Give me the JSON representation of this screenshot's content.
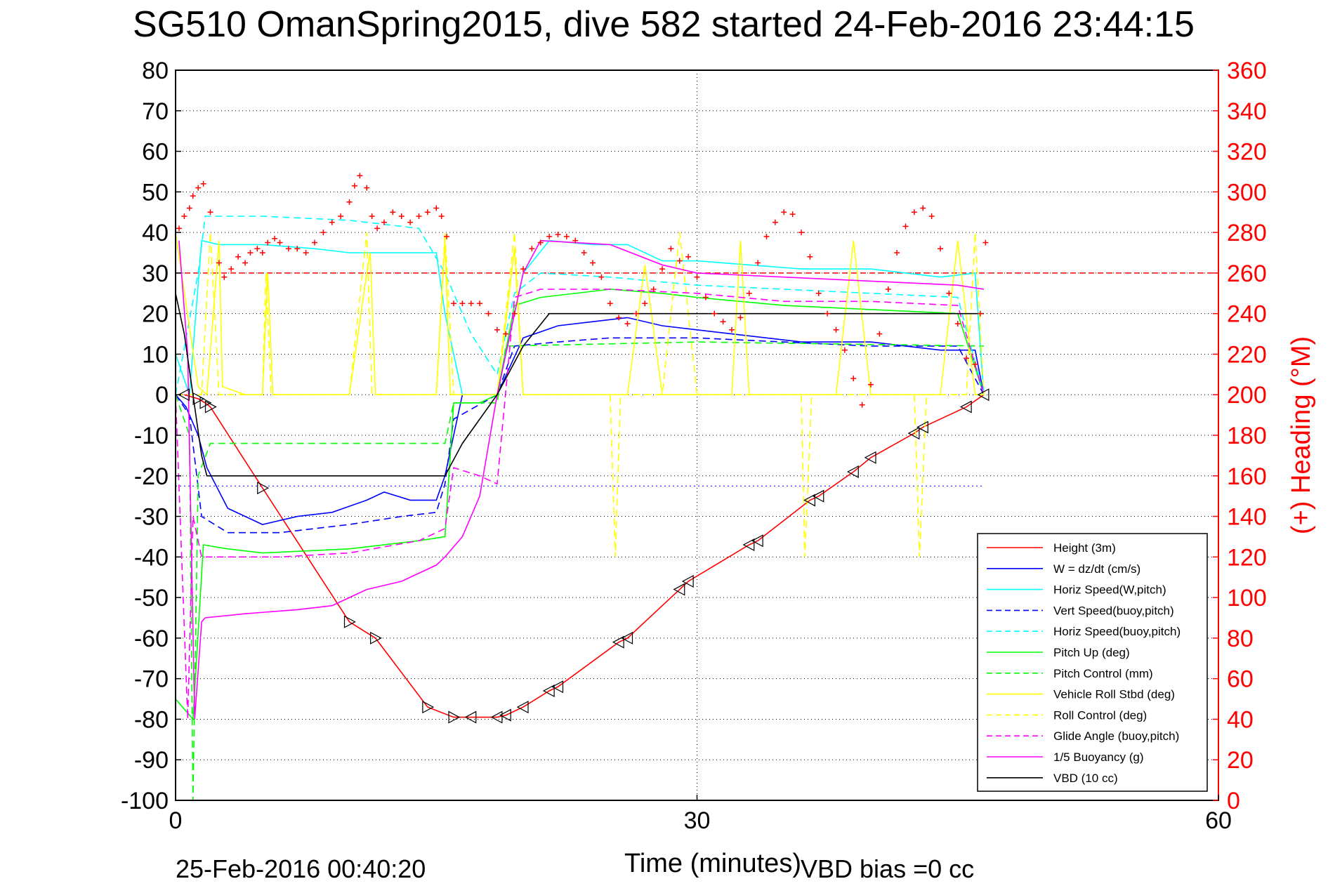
{
  "chart_data": {
    "type": "line",
    "title": "SG510 OmanSpring2015, dive 582 started 24-Feb-2016 23:44:15",
    "xlabel": "Time (minutes)",
    "ylabel_right": "(+) Heading (°M)",
    "footer_left": "25-Feb-2016 00:40:20",
    "footer_right": "VBD bias =0 cc",
    "xlim": [
      0,
      60
    ],
    "ylim": [
      -100,
      80
    ],
    "ylim_right": [
      0,
      360
    ],
    "x_ticks": [
      "0",
      "30",
      "60"
    ],
    "y_ticks": [
      "80",
      "70",
      "60",
      "50",
      "40",
      "30",
      "20",
      "10",
      "0",
      "-10",
      "-20",
      "-30",
      "-40",
      "-50",
      "-60",
      "-70",
      "-80",
      "-90",
      "-100"
    ],
    "y_ticks_right": [
      "360",
      "340",
      "320",
      "300",
      "280",
      "260",
      "240",
      "220",
      "200",
      "180",
      "160",
      "140",
      "120",
      "100",
      "80",
      "60",
      "40",
      "20",
      "0"
    ],
    "grid": true,
    "legend_position": "bottom-right",
    "colors": {
      "height": "#ff0000",
      "w": "#0000ff",
      "horiz_speed": "#00ffff",
      "vert_speed_buoy": "#0000ff",
      "horiz_speed_buoy": "#00ffff",
      "pitch_up": "#00ff00",
      "pitch_control": "#00ff00",
      "vehicle_roll": "#ffff00",
      "roll_control": "#ffff00",
      "glide_angle": "#ff00ff",
      "buoyancy": "#ff00ff",
      "vbd": "#000000",
      "heading": "#ff0000"
    },
    "series": [
      {
        "id": "height",
        "name": "Height (3m)",
        "style": "solid",
        "x": [
          0.5,
          1.3,
          1.7,
          2.0,
          5.0,
          10.0,
          11.5,
          14.5,
          16.0,
          17.0,
          18.5,
          19.0,
          20.0,
          21.5,
          22.0,
          25.5,
          26.0,
          29.0,
          29.5,
          33.0,
          33.5,
          36.5,
          37.0,
          39.0,
          40.0,
          42.5,
          43.0,
          45.5,
          46.5
        ],
        "y": [
          0,
          -1,
          -2,
          -3,
          -23,
          -56,
          -60,
          -77,
          -79.5,
          -79.5,
          -79.5,
          -79,
          -77,
          -73,
          -72,
          -61,
          -60,
          -48,
          -46,
          -37,
          -36,
          -26,
          -25,
          -19,
          -15.5,
          -9.5,
          -8,
          -3,
          0
        ]
      },
      {
        "id": "w",
        "name": "W = dz/dt (cm/s)",
        "style": "solid",
        "x": [
          0,
          0.6,
          1.3,
          1.8,
          3,
          5,
          7,
          9,
          11,
          12,
          13.5,
          15,
          15.5,
          16.5,
          18.5,
          20,
          22,
          24,
          26,
          28,
          30,
          32,
          34,
          36,
          38,
          40,
          42,
          44,
          46,
          46.5
        ],
        "y": [
          0,
          -3,
          -10,
          -18,
          -28,
          -32,
          -30,
          -29,
          -26,
          -24,
          -26,
          -26,
          -20,
          0,
          0,
          14,
          17,
          18,
          19,
          17,
          16,
          15,
          14,
          13,
          13,
          13,
          12,
          11,
          11,
          0
        ]
      },
      {
        "id": "horiz_speed",
        "name": "Horiz Speed(W,pitch)",
        "style": "solid",
        "x": [
          0,
          0.8,
          1.5,
          2.5,
          5,
          8,
          10,
          12,
          15,
          15.5,
          16.5,
          18.5,
          20,
          21.5,
          24,
          26,
          28,
          30,
          33,
          36,
          40,
          44,
          46,
          46.5
        ],
        "y": [
          10,
          0,
          38,
          37,
          37,
          36,
          35,
          35,
          35,
          20,
          0,
          0,
          30,
          38,
          37,
          37,
          33,
          33,
          32,
          31,
          31,
          29,
          30,
          0
        ]
      },
      {
        "id": "vert_speed_buoy",
        "name": "Vert Speed(buoy,pitch)",
        "style": "dashed",
        "x": [
          0,
          0.8,
          1.5,
          3,
          6,
          10,
          13,
          15,
          15.5,
          16,
          18.5,
          19.5,
          22,
          25,
          28,
          30,
          35,
          40,
          45,
          46.5
        ],
        "y": [
          0,
          -5,
          -30,
          -34,
          -34,
          -32,
          -30,
          -29,
          -22,
          -6,
          0,
          12,
          13,
          14,
          14,
          14,
          13,
          12,
          12,
          0
        ]
      },
      {
        "id": "horiz_speed_buoy",
        "name": "Horiz Speed(buoy,pitch)",
        "style": "dashed",
        "x": [
          0,
          1.3,
          1.7,
          5,
          10,
          14,
          15.5,
          17,
          18.5,
          19.5,
          21,
          25,
          30,
          35,
          40,
          45,
          46.5
        ],
        "y": [
          0,
          30,
          44,
          44,
          43,
          41,
          30,
          15,
          5,
          25,
          30,
          29,
          27,
          26,
          25,
          24,
          0
        ]
      },
      {
        "id": "pitch_up",
        "name": "Pitch Up (deg)",
        "style": "solid",
        "x": [
          0,
          1.0,
          1.6,
          3,
          5,
          10,
          14,
          15.5,
          16,
          17.5,
          18.5,
          19.5,
          21,
          25,
          28,
          30,
          35,
          40,
          45,
          46.5
        ],
        "y": [
          -75,
          -80,
          -37,
          -38,
          -39,
          -38,
          -36,
          -35,
          -2,
          -2,
          0,
          22,
          24,
          26,
          25,
          24,
          22,
          21,
          20,
          0
        ]
      },
      {
        "id": "pitch_control",
        "name": "Pitch Control (mm)",
        "style": "dashed",
        "x": [
          0,
          0.8,
          1.0,
          1.3,
          2,
          10,
          15.5,
          16,
          18.5,
          19,
          30,
          46.5
        ],
        "y": [
          0,
          -10,
          -100,
          -20,
          -12,
          -12,
          -12,
          -2,
          -2,
          12,
          13,
          12
        ]
      },
      {
        "id": "vehicle_roll",
        "name": "Vehicle Roll Stbd (deg)",
        "style": "solid",
        "x": [
          0,
          1.3,
          1.8,
          2.5,
          2.7,
          4,
          5,
          5.3,
          5.6,
          6,
          10,
          11,
          11.2,
          11.5,
          12,
          15,
          15.5,
          15.8,
          16,
          18.5,
          19.5,
          20,
          22,
          24,
          26,
          27,
          28,
          30,
          32,
          32.5,
          33,
          34,
          36,
          38,
          39,
          40,
          42,
          44,
          45,
          46,
          46.5
        ],
        "y": [
          40,
          2,
          0,
          38,
          2,
          0,
          0,
          30,
          0,
          0,
          0,
          30,
          35,
          0,
          0,
          0,
          38,
          0,
          0,
          0,
          36,
          0,
          0,
          0,
          0,
          32,
          0,
          0,
          0,
          38,
          0,
          0,
          0,
          0,
          38,
          0,
          0,
          0,
          38,
          0,
          0
        ]
      },
      {
        "id": "roll_control",
        "name": "Roll Control (deg)",
        "style": "dashed",
        "x": [
          0,
          1.5,
          2.0,
          2.5,
          3.0,
          5.0,
          5.2,
          5.5,
          10,
          11,
          11.3,
          15,
          15.5,
          16,
          18.5,
          19.5,
          20,
          25,
          25.3,
          25.6,
          28,
          29,
          30,
          36,
          36.2,
          36.6,
          42.5,
          42.8,
          43.2,
          45.5,
          46,
          46.5
        ],
        "y": [
          0,
          0,
          40,
          0,
          0,
          0,
          30,
          0,
          0,
          40,
          0,
          0,
          40,
          0,
          0,
          40,
          0,
          0,
          -40,
          0,
          0,
          40,
          0,
          0,
          -40,
          0,
          0,
          -40,
          0,
          0,
          40,
          0
        ]
      },
      {
        "id": "glide_angle",
        "name": "Glide Angle (buoy,pitch)",
        "style": "dashed",
        "x": [
          0,
          0.7,
          1.0,
          1.5,
          3,
          6,
          10,
          14,
          15.5,
          16,
          17.5,
          18.5,
          19.5,
          21,
          25,
          30,
          35,
          40,
          45,
          46.5
        ],
        "y": [
          0,
          -80,
          -30,
          -40,
          -40,
          -40,
          -39,
          -36,
          -33,
          -18,
          -20,
          -22,
          24,
          26,
          26,
          25,
          23,
          23,
          22,
          0
        ]
      },
      {
        "id": "buoyancy",
        "name": "1/5 Buoyancy (g)",
        "style": "solid",
        "x": [
          0.2,
          0.7,
          1.1,
          1.5,
          1.7,
          4,
          7,
          9,
          11,
          13,
          15,
          15.5,
          16.5,
          17.5,
          18.5,
          20,
          21,
          25,
          28,
          30,
          35,
          40,
          45,
          46.5
        ],
        "y": [
          38,
          10,
          -80,
          -56,
          -55,
          -54,
          -53,
          -52,
          -48,
          -46,
          -42,
          -40,
          -35,
          -25,
          0,
          30,
          38,
          37,
          32,
          30,
          29,
          28,
          27,
          26
        ]
      },
      {
        "id": "vbd",
        "name": "VBD (10 cc)",
        "style": "solid",
        "x": [
          0,
          0.5,
          1.0,
          1.5,
          1.8,
          5,
          10,
          15.5,
          16.5,
          18.5,
          20,
          21.5,
          25,
          30,
          40,
          46.5
        ],
        "y": [
          25,
          15,
          0,
          -15,
          -20,
          -20,
          -20,
          -20,
          -12,
          0,
          12,
          20,
          20,
          20,
          20,
          20
        ]
      }
    ],
    "heading_points": {
      "name": "Heading",
      "x": [
        0.2,
        0.5,
        0.8,
        1.0,
        1.3,
        1.6,
        2.0,
        2.5,
        2.8,
        3.2,
        3.6,
        4.0,
        4.3,
        4.7,
        5.0,
        5.3,
        5.7,
        6.0,
        6.5,
        7.0,
        7.5,
        8.0,
        8.5,
        9.0,
        9.5,
        10.0,
        10.3,
        10.6,
        11.0,
        11.3,
        11.6,
        12.0,
        12.5,
        13.0,
        13.5,
        14.0,
        14.5,
        15.0,
        15.3,
        15.6,
        16.0,
        16.5,
        17.0,
        17.5,
        18.0,
        18.5,
        19.0,
        19.5,
        20.0,
        20.5,
        21.0,
        21.5,
        22.0,
        22.5,
        23.0,
        23.5,
        24.0,
        24.5,
        25.0,
        25.5,
        26.0,
        26.5,
        27.0,
        27.5,
        28.0,
        28.5,
        29.0,
        29.5,
        30.0,
        30.5,
        31.0,
        31.5,
        32.0,
        32.5,
        33.0,
        33.5,
        34.0,
        34.5,
        35.0,
        35.5,
        36.0,
        36.5,
        37.0,
        37.5,
        38.0,
        38.5,
        39.0,
        39.5,
        40.0,
        40.5,
        41.0,
        41.5,
        42.0,
        42.5,
        43.0,
        43.5,
        44.0,
        44.5,
        45.0,
        45.5,
        46.0,
        46.3,
        46.6
      ],
      "y": [
        282,
        288,
        292,
        298,
        302,
        304,
        290,
        265,
        258,
        262,
        268,
        265,
        270,
        272,
        270,
        275,
        277,
        275,
        272,
        272,
        270,
        275,
        280,
        285,
        288,
        295,
        303,
        308,
        302,
        288,
        282,
        285,
        290,
        288,
        285,
        288,
        290,
        292,
        288,
        278,
        245,
        245,
        245,
        245,
        240,
        232,
        230,
        240,
        262,
        272,
        275,
        278,
        279,
        278,
        276,
        270,
        265,
        258,
        245,
        238,
        235,
        240,
        245,
        252,
        262,
        272,
        266,
        268,
        258,
        248,
        240,
        236,
        232,
        238,
        250,
        265,
        278,
        285,
        290,
        289,
        280,
        268,
        250,
        240,
        232,
        222,
        208,
        195,
        205,
        230,
        252,
        270,
        283,
        290,
        292,
        288,
        272,
        250,
        235,
        218,
        215,
        240,
        275
      ]
    },
    "reference_lines": {
      "heading_target": 260,
      "dotted_blue": -22.5
    }
  }
}
